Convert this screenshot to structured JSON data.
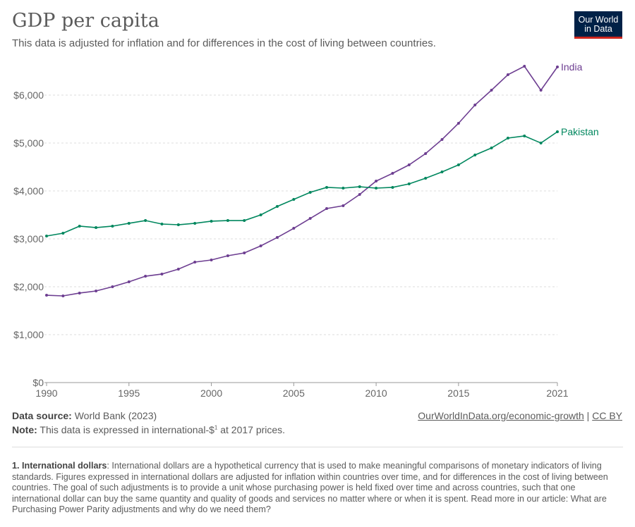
{
  "header": {
    "title": "GDP per capita",
    "subtitle": "This data is adjusted for inflation and for differences in the cost of living between countries.",
    "logo_text": "Our World in Data"
  },
  "colors": {
    "India": "#6d3e91",
    "Pakistan": "#00875e",
    "logo_bg": "#002147",
    "logo_accent": "#ce261e"
  },
  "chart_data": {
    "type": "line",
    "title": "GDP per capita",
    "xlabel": "",
    "ylabel": "",
    "xlim": [
      1990,
      2021
    ],
    "ylim": [
      0,
      6600
    ],
    "y_ticks": [
      0,
      1000,
      2000,
      3000,
      4000,
      5000,
      6000
    ],
    "y_tick_labels": [
      "$0",
      "$1,000",
      "$2,000",
      "$3,000",
      "$4,000",
      "$5,000",
      "$6,000"
    ],
    "x_ticks": [
      1990,
      1995,
      2000,
      2005,
      2010,
      2015,
      2021
    ],
    "x_tick_labels": [
      "1990",
      "1995",
      "2000",
      "2005",
      "2010",
      "2015",
      "2021"
    ],
    "grid": "horizontal dashed",
    "legend": "inline labels at line ends (right)",
    "x": [
      1990,
      1991,
      1992,
      1993,
      1994,
      1995,
      1996,
      1997,
      1998,
      1999,
      2000,
      2001,
      2002,
      2003,
      2004,
      2005,
      2006,
      2007,
      2008,
      2009,
      2010,
      2011,
      2012,
      2013,
      2014,
      2015,
      2016,
      2017,
      2018,
      2019,
      2020,
      2021
    ],
    "series": [
      {
        "name": "India",
        "values": [
          1823,
          1809,
          1868,
          1912,
          2000,
          2103,
          2220,
          2265,
          2368,
          2515,
          2559,
          2647,
          2706,
          2853,
          3029,
          3220,
          3426,
          3632,
          3691,
          3926,
          4206,
          4368,
          4544,
          4779,
          5074,
          5412,
          5794,
          6103,
          6426,
          6603,
          6103,
          6588
        ]
      },
      {
        "name": "Pakistan",
        "values": [
          3059,
          3118,
          3265,
          3235,
          3265,
          3324,
          3382,
          3309,
          3294,
          3324,
          3368,
          3382,
          3382,
          3500,
          3676,
          3824,
          3971,
          4074,
          4059,
          4088,
          4059,
          4074,
          4147,
          4265,
          4397,
          4544,
          4750,
          4897,
          5103,
          5147,
          5000,
          5235
        ]
      }
    ]
  },
  "footer": {
    "source_label": "Data source:",
    "source": "World Bank (2023)",
    "note_label": "Note:",
    "note_pre": "This data is expressed in international-$",
    "note_sup": "1",
    "note_post": " at 2017 prices.",
    "link": "OurWorldInData.org/economic-growth",
    "sep": " | ",
    "license": "CC BY",
    "footnote_label": "1. International dollars",
    "footnote_text": ": International dollars are a hypothetical currency that is used to make meaningful comparisons of monetary indicators of living standards. Figures expressed in international dollars are adjusted for inflation within countries over time, and for differences in the cost of living between countries. The goal of such adjustments is to provide a unit whose purchasing power is held fixed over time and across countries, such that one international dollar can buy the same quantity and quality of goods and services no matter where or when it is spent. Read more in our article: What are Purchasing Power Parity adjustments and why do we need them?"
  }
}
